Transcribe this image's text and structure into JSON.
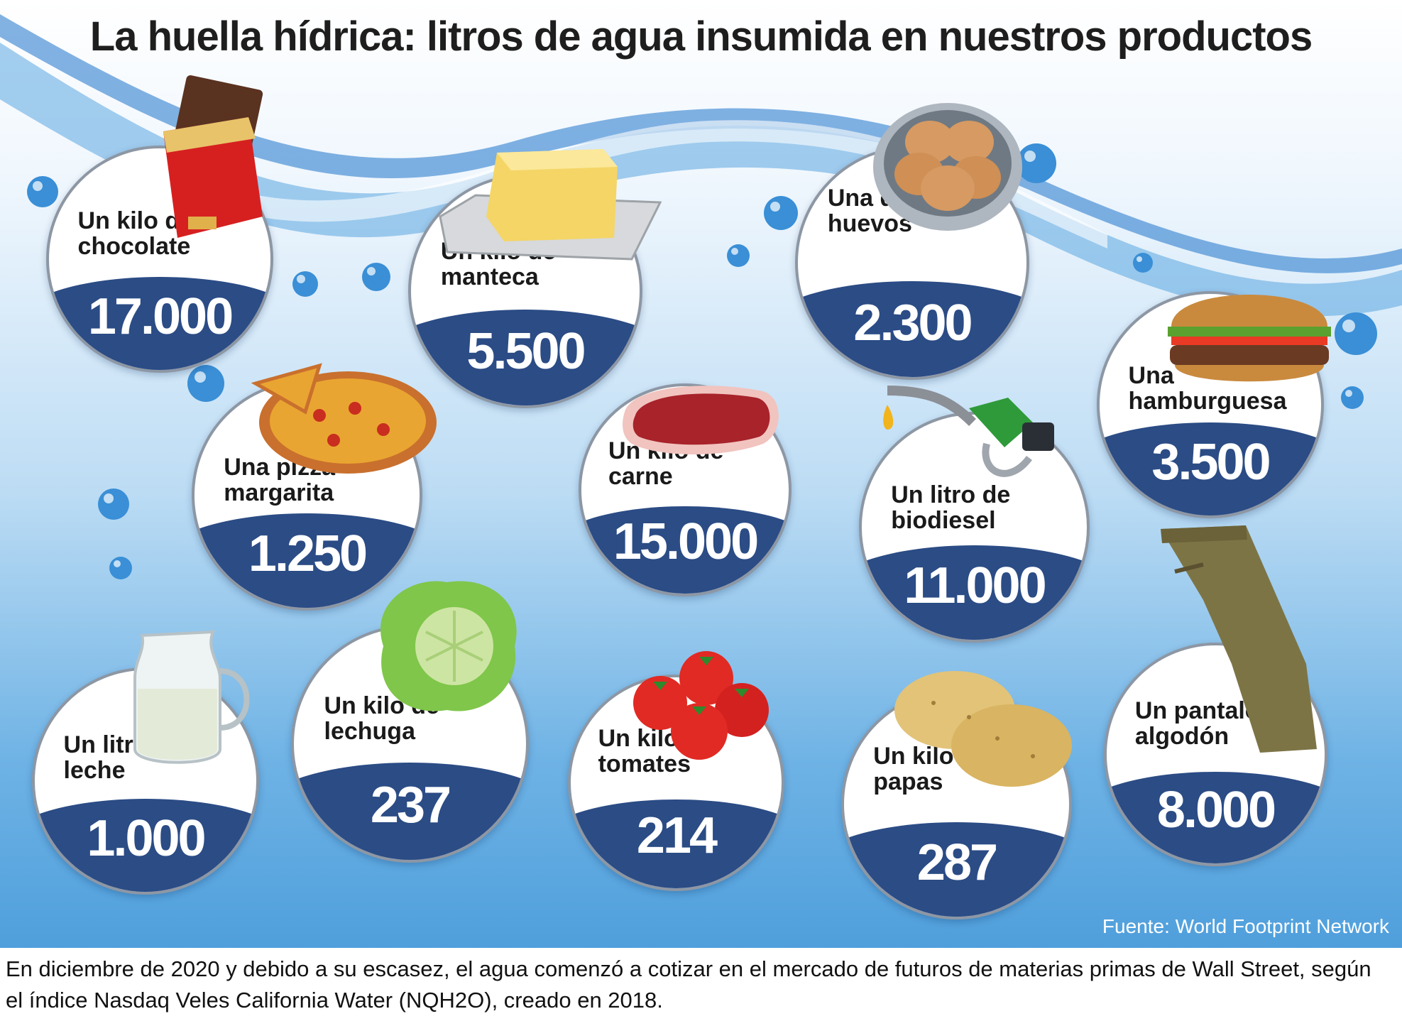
{
  "title": "La huella hídrica: litros de agua insumida en nuestros productos",
  "source": "Fuente: World Footprint Network",
  "caption": "En diciembre de 2020 y debido a su escasez, el agua comenzó a cotizar en el mercado de futuros de materias primas de Wall Street, según el índice Nasdaq Veles California Water (NQH2O), creado en 2018.",
  "colors": {
    "band": "#2b4c85",
    "water": "#4f9fdc"
  },
  "chart_data": {
    "type": "table",
    "title": "La huella hídrica: litros de agua insumida en nuestros productos",
    "items": [
      {
        "label": "Un kilo de chocolate",
        "value": "17.000",
        "icon": "chocolate-bar-icon"
      },
      {
        "label": "Un kilo de manteca",
        "value": "5.500",
        "icon": "butter-dish-icon"
      },
      {
        "label": "Una docena de huevos",
        "value": "2.300",
        "icon": "eggs-bowl-icon"
      },
      {
        "label": "Una hamburguesa",
        "value": "3.500",
        "icon": "hamburger-icon"
      },
      {
        "label": "Una pizza margarita",
        "value": "1.250",
        "icon": "pizza-icon"
      },
      {
        "label": "Un kilo de carne",
        "value": "15.000",
        "icon": "steak-icon"
      },
      {
        "label": "Un litro de biodiesel",
        "value": "11.000",
        "icon": "fuel-nozzle-icon"
      },
      {
        "label": "Un pantalón de algodón",
        "value": "8.000",
        "icon": "trousers-icon"
      },
      {
        "label": "Un litro de leche",
        "value": "1.000",
        "icon": "milk-jug-icon"
      },
      {
        "label": "Un kilo de lechuga",
        "value": "237",
        "icon": "lettuce-icon"
      },
      {
        "label": "Un kilo de tomates",
        "value": "214",
        "icon": "tomatoes-icon"
      },
      {
        "label": "Un kilo de papas",
        "value": "287",
        "icon": "potatoes-icon"
      }
    ]
  }
}
